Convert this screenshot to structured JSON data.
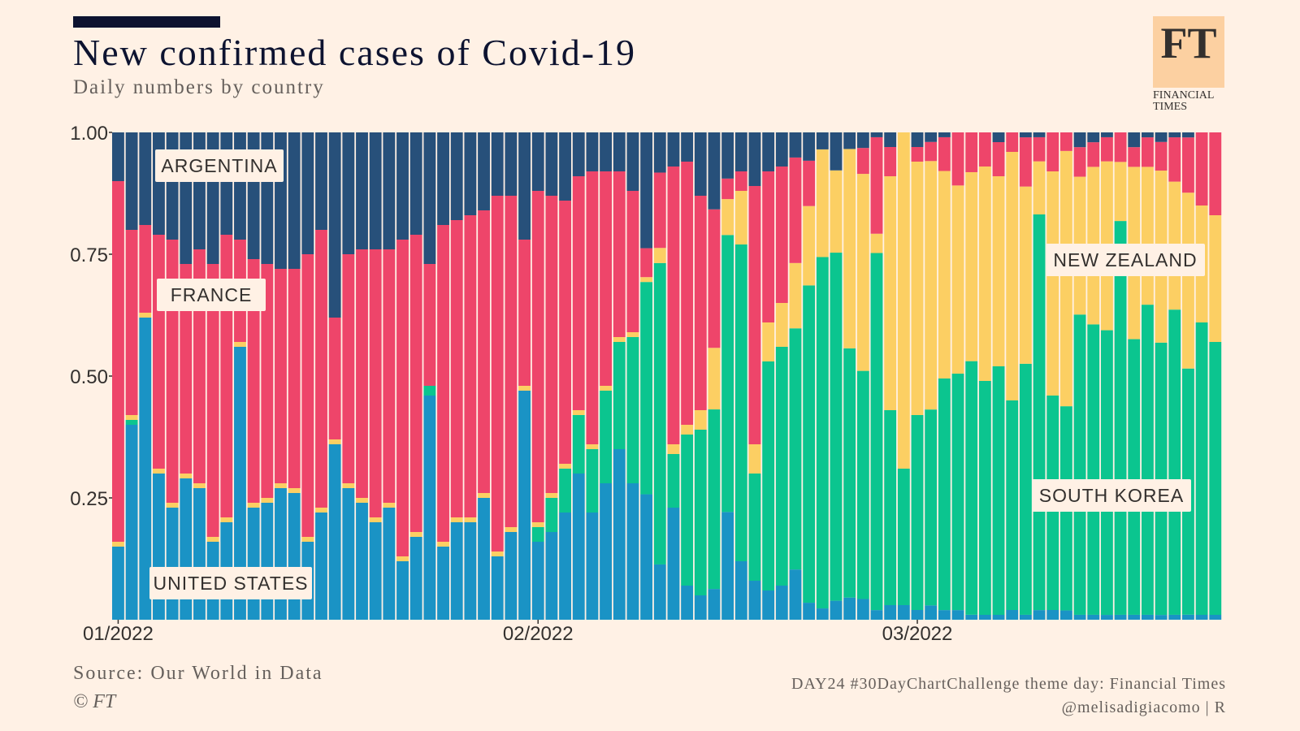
{
  "header": {
    "title": "New confirmed cases of Covid-19",
    "subtitle": "Daily numbers by country"
  },
  "logo": {
    "letters": "FT",
    "caption_line1": "FINANCIAL",
    "caption_line2": "TIMES"
  },
  "footer": {
    "source": "Source: Our World in Data",
    "copyright": "© FT",
    "credit_line1": "DAY24 #30DayChartChallenge theme day: Financial Times",
    "credit_line2": "@melisadigiacomo | R"
  },
  "colors": {
    "background": "#fff1e5",
    "united_states": "#1a93c5",
    "south_korea": "#0bc58f",
    "new_zealand": "#fccf63",
    "france": "#ee456a",
    "argentina": "#27507a",
    "title_bar": "#0d1330"
  },
  "chart_data": {
    "type": "bar",
    "stacked": true,
    "normalized": true,
    "x_tick_labels": [
      "01/2022",
      "02/2022",
      "03/2022"
    ],
    "x_tick_days": [
      1,
      32,
      60
    ],
    "y_tick_labels": [
      "1.00",
      "0.75",
      "0.50",
      "0.25"
    ],
    "ylim": [
      0,
      1
    ],
    "day_range": [
      1,
      82
    ],
    "annotations": [
      "ARGENTINA",
      "FRANCE",
      "UNITED STATES",
      "NEW ZEALAND",
      "SOUTH KOREA"
    ],
    "series": [
      {
        "name": "United States",
        "color": "#1a93c5",
        "values": [
          0.15,
          0.4,
          0.62,
          0.3,
          0.23,
          0.29,
          0.27,
          0.16,
          0.2,
          0.56,
          0.23,
          0.24,
          0.27,
          0.26,
          0.16,
          0.22,
          0.36,
          0.27,
          0.24,
          0.2,
          0.23,
          0.12,
          0.17,
          0.46,
          0.15,
          0.2,
          0.2,
          0.25,
          0.13,
          0.18,
          0.47,
          0.16,
          0.18,
          0.22,
          0.3,
          0.22,
          0.28,
          0.35,
          0.28,
          0.26,
          0.11,
          0.23,
          0.07,
          0.05,
          0.06,
          0.21,
          0.12,
          0.08,
          0.06,
          0.07,
          0.1,
          0.03,
          0.02,
          0.03,
          0.04,
          0.04,
          0.02,
          0.03,
          0.03,
          0.02,
          0.03,
          0.02,
          0.02,
          0.01,
          0.01,
          0.01,
          0.02,
          0.01,
          0.02,
          0.02,
          0.02,
          0.01,
          0.01,
          0.01,
          0.01,
          0.01,
          0.01,
          0.01,
          0.01,
          0.01,
          0.01,
          0.01
        ]
      },
      {
        "name": "South Korea",
        "color": "#0bc58f",
        "values": [
          0.0,
          0.01,
          0.0,
          0.0,
          0.0,
          0.0,
          0.0,
          0.0,
          0.0,
          0.0,
          0.0,
          0.0,
          0.0,
          0.0,
          0.0,
          0.0,
          0.0,
          0.0,
          0.0,
          0.0,
          0.0,
          0.0,
          0.0,
          0.02,
          0.0,
          0.0,
          0.0,
          0.0,
          0.0,
          0.0,
          0.0,
          0.03,
          0.07,
          0.09,
          0.12,
          0.13,
          0.19,
          0.22,
          0.3,
          0.44,
          0.6,
          0.11,
          0.31,
          0.34,
          0.35,
          0.54,
          0.65,
          0.22,
          0.47,
          0.49,
          0.48,
          0.56,
          0.62,
          0.55,
          0.45,
          0.44,
          0.74,
          0.4,
          0.28,
          0.4,
          0.41,
          0.48,
          0.49,
          0.51,
          0.48,
          0.51,
          0.43,
          0.51,
          0.82,
          0.44,
          0.44,
          0.61,
          0.59,
          0.59,
          0.8,
          0.56,
          0.63,
          0.57,
          0.62,
          0.49,
          0.6,
          0.56
        ]
      },
      {
        "name": "New Zealand",
        "color": "#fccf63",
        "values": [
          0.01,
          0.01,
          0.01,
          0.01,
          0.01,
          0.01,
          0.01,
          0.01,
          0.01,
          0.01,
          0.01,
          0.01,
          0.01,
          0.01,
          0.01,
          0.01,
          0.01,
          0.01,
          0.01,
          0.01,
          0.01,
          0.01,
          0.01,
          0.0,
          0.01,
          0.01,
          0.01,
          0.01,
          0.01,
          0.01,
          0.01,
          0.01,
          0.01,
          0.01,
          0.01,
          0.01,
          0.01,
          0.01,
          0.01,
          0.01,
          0.03,
          0.02,
          0.02,
          0.04,
          0.12,
          0.07,
          0.11,
          0.06,
          0.08,
          0.09,
          0.13,
          0.14,
          0.19,
          0.13,
          0.36,
          0.38,
          0.04,
          0.48,
          0.69,
          0.52,
          0.52,
          0.43,
          0.39,
          0.38,
          0.44,
          0.39,
          0.51,
          0.36,
          0.11,
          0.46,
          0.55,
          0.28,
          0.32,
          0.35,
          0.12,
          0.35,
          0.28,
          0.36,
          0.26,
          0.35,
          0.24,
          0.26
        ]
      },
      {
        "name": "France",
        "color": "#ee456a",
        "values": [
          0.74,
          0.38,
          0.18,
          0.48,
          0.54,
          0.43,
          0.48,
          0.56,
          0.58,
          0.21,
          0.5,
          0.48,
          0.44,
          0.45,
          0.58,
          0.57,
          0.25,
          0.47,
          0.51,
          0.55,
          0.52,
          0.65,
          0.61,
          0.25,
          0.65,
          0.61,
          0.62,
          0.58,
          0.73,
          0.68,
          0.3,
          0.68,
          0.61,
          0.54,
          0.48,
          0.56,
          0.44,
          0.34,
          0.29,
          0.06,
          0.15,
          0.57,
          0.54,
          0.44,
          0.27,
          0.04,
          0.04,
          0.53,
          0.31,
          0.28,
          0.21,
          0.08,
          0.0,
          0.0,
          0.0,
          0.05,
          0.2,
          0.06,
          0.0,
          0.03,
          0.04,
          0.07,
          0.11,
          0.08,
          0.07,
          0.07,
          0.04,
          0.1,
          0.05,
          0.08,
          0.04,
          0.06,
          0.05,
          0.05,
          0.06,
          0.04,
          0.06,
          0.06,
          0.09,
          0.11,
          0.15,
          0.17
        ]
      },
      {
        "name": "Argentina",
        "color": "#27507a",
        "values": [
          0.1,
          0.2,
          0.19,
          0.21,
          0.22,
          0.27,
          0.24,
          0.27,
          0.21,
          0.22,
          0.26,
          0.27,
          0.28,
          0.28,
          0.25,
          0.2,
          0.38,
          0.25,
          0.24,
          0.24,
          0.24,
          0.22,
          0.21,
          0.27,
          0.19,
          0.18,
          0.17,
          0.16,
          0.13,
          0.13,
          0.22,
          0.12,
          0.13,
          0.14,
          0.09,
          0.08,
          0.08,
          0.08,
          0.12,
          0.24,
          0.08,
          0.07,
          0.06,
          0.13,
          0.15,
          0.09,
          0.08,
          0.11,
          0.08,
          0.07,
          0.05,
          0.05,
          0.03,
          0.06,
          0.03,
          0.03,
          0.01,
          0.03,
          0.0,
          0.03,
          0.02,
          0.01,
          0.0,
          0.0,
          0.0,
          0.02,
          0.0,
          0.01,
          0.01,
          0.0,
          0.0,
          0.03,
          0.02,
          0.01,
          0.0,
          0.03,
          0.01,
          0.02,
          0.01,
          0.01,
          0.0,
          0.0
        ]
      }
    ]
  }
}
